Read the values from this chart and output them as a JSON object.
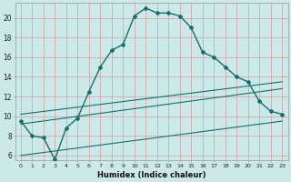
{
  "xlabel": "Humidex (Indice chaleur)",
  "bg_color": "#cce8e8",
  "grid_color": "#aacccc",
  "line_color": "#1a6e6e",
  "xlim": [
    -0.5,
    23.5
  ],
  "ylim": [
    5.5,
    21.5
  ],
  "xticks": [
    0,
    1,
    2,
    3,
    4,
    5,
    6,
    7,
    8,
    9,
    10,
    11,
    12,
    13,
    14,
    15,
    16,
    17,
    18,
    19,
    20,
    21,
    22,
    23
  ],
  "yticks": [
    6,
    8,
    10,
    12,
    14,
    16,
    18,
    20
  ],
  "series1_x": [
    0,
    1,
    2,
    3,
    4,
    5,
    6,
    7,
    8,
    9,
    10,
    11,
    12,
    13,
    14,
    15,
    16,
    17,
    18,
    19,
    20,
    21,
    22,
    23
  ],
  "series1_y": [
    9.5,
    8.0,
    7.8,
    5.6,
    8.8,
    9.8,
    12.5,
    15.0,
    16.7,
    17.3,
    20.2,
    21.0,
    20.5,
    20.5,
    20.2,
    19.0,
    16.5,
    16.0,
    15.0,
    14.0,
    13.5,
    11.5,
    10.5,
    10.2
  ],
  "series2_x": [
    0,
    23
  ],
  "series2_y": [
    9.2,
    12.8
  ],
  "series3_x": [
    0,
    23
  ],
  "series3_y": [
    10.2,
    13.5
  ],
  "series4_x": [
    0,
    23
  ],
  "series4_y": [
    6.0,
    9.5
  ]
}
